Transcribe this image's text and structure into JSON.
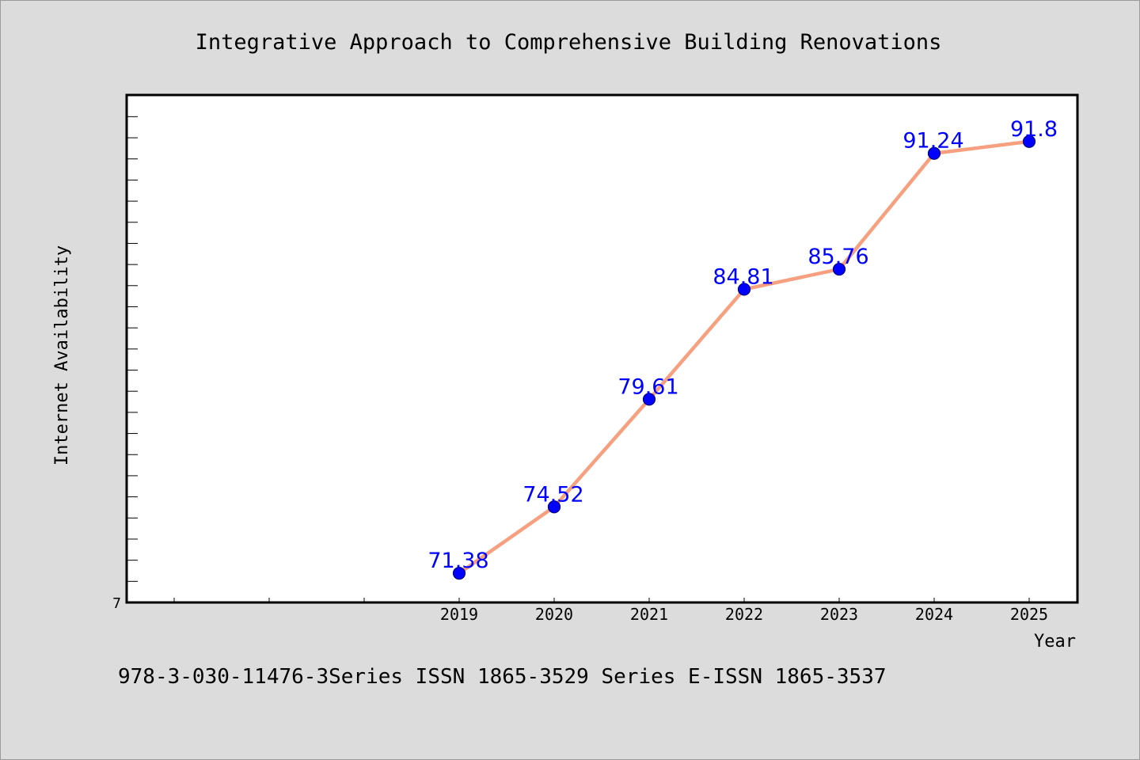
{
  "chart_data": {
    "type": "line",
    "title": "Integrative Approach to Comprehensive Building Renovations",
    "xlabel": "Year",
    "ylabel": "Internet Availability",
    "footer": "978-3-030-11476-3Series ISSN 1865-3529 Series E-ISSN 1865-3537",
    "categories": [
      "2019",
      "2020",
      "2021",
      "2022",
      "2023",
      "2024",
      "2025"
    ],
    "series": [
      {
        "values": [
          71.38,
          74.52,
          79.61,
          84.81,
          85.76,
          91.24,
          91.8
        ],
        "data_labels": [
          "71.38",
          "74.52",
          "79.61",
          "84.81",
          "85.76",
          "91.24",
          "91.8"
        ]
      }
    ],
    "y_tick_label": "7",
    "ylim": [
      70.0,
      94.0
    ],
    "grid": false,
    "legend": "none",
    "colors": {
      "line": "#f7a07f",
      "marker": "#0000ff",
      "marker_edge": "#000080",
      "data_label": "#0000ff",
      "plot_bg": "#ffffff",
      "page_bg": "#dcdcdc",
      "axes": "#000000"
    }
  }
}
